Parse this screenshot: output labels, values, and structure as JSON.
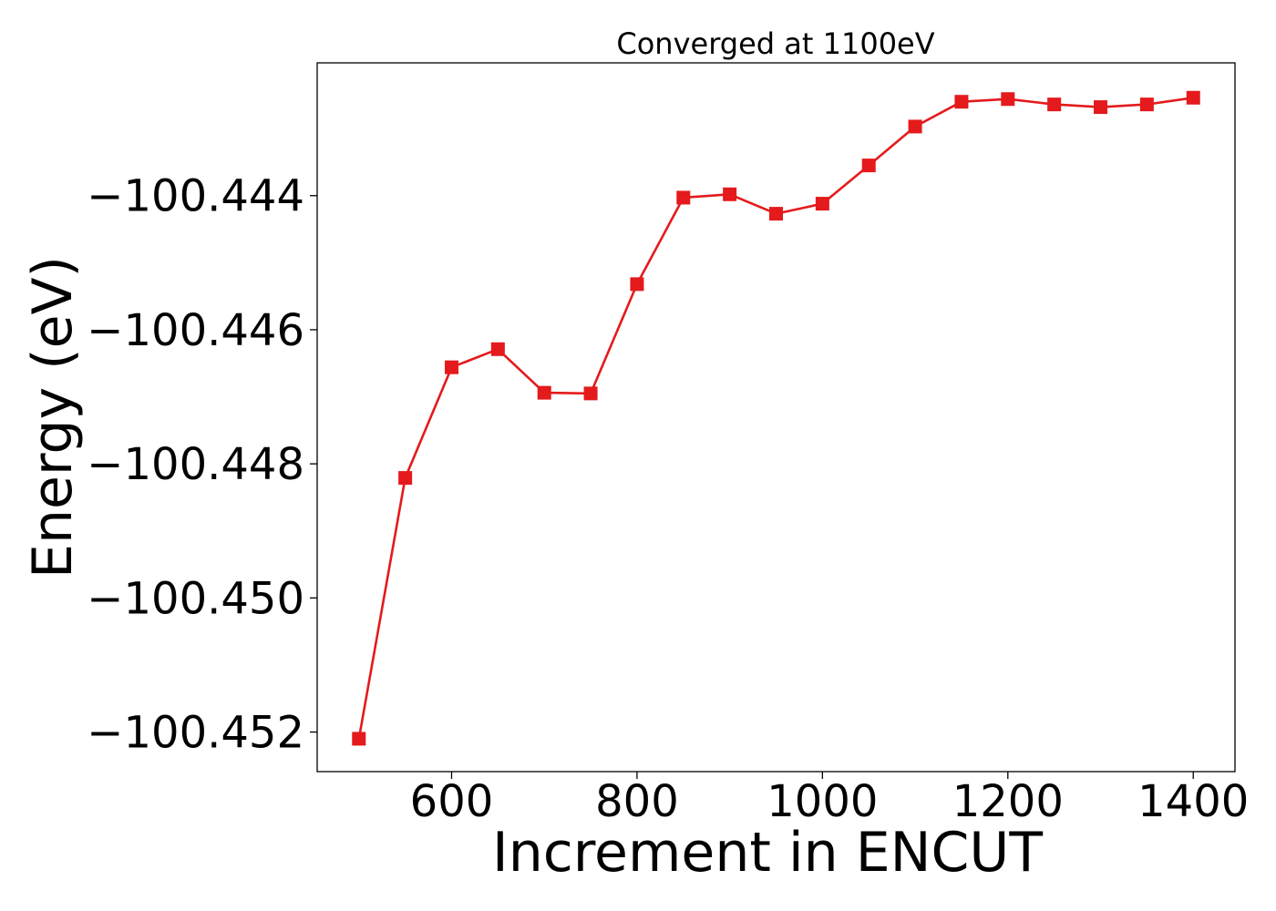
{
  "chart_data": {
    "type": "line",
    "title": "Converged at 1100eV",
    "xlabel": "Increment in ENCUT",
    "ylabel": "Energy (eV)",
    "xlim": [
      455,
      1445
    ],
    "ylim": [
      -100.45259,
      -100.44202
    ],
    "xticks": [
      600,
      800,
      1000,
      1200,
      1400
    ],
    "xtick_labels": [
      "600",
      "800",
      "1000",
      "1200",
      "1400"
    ],
    "yticks": [
      -100.444,
      -100.446,
      -100.448,
      -100.45,
      -100.452
    ],
    "ytick_labels": [
      "−100.444",
      "−100.446",
      "−100.448",
      "−100.450",
      "−100.452"
    ],
    "grid": false,
    "series": [
      {
        "color": "#e41a1c",
        "marker": "square",
        "x": [
          500,
          550,
          600,
          650,
          700,
          750,
          800,
          850,
          900,
          950,
          1000,
          1050,
          1100,
          1150,
          1200,
          1250,
          1300,
          1350,
          1400
        ],
        "y": [
          -100.4521,
          -100.44821,
          -100.44656,
          -100.44629,
          -100.44694,
          -100.44695,
          -100.44532,
          -100.44403,
          -100.44398,
          -100.44427,
          -100.44412,
          -100.44355,
          -100.44297,
          -100.4426,
          -100.44256,
          -100.44264,
          -100.44268,
          -100.44264,
          -100.44254
        ]
      }
    ]
  }
}
